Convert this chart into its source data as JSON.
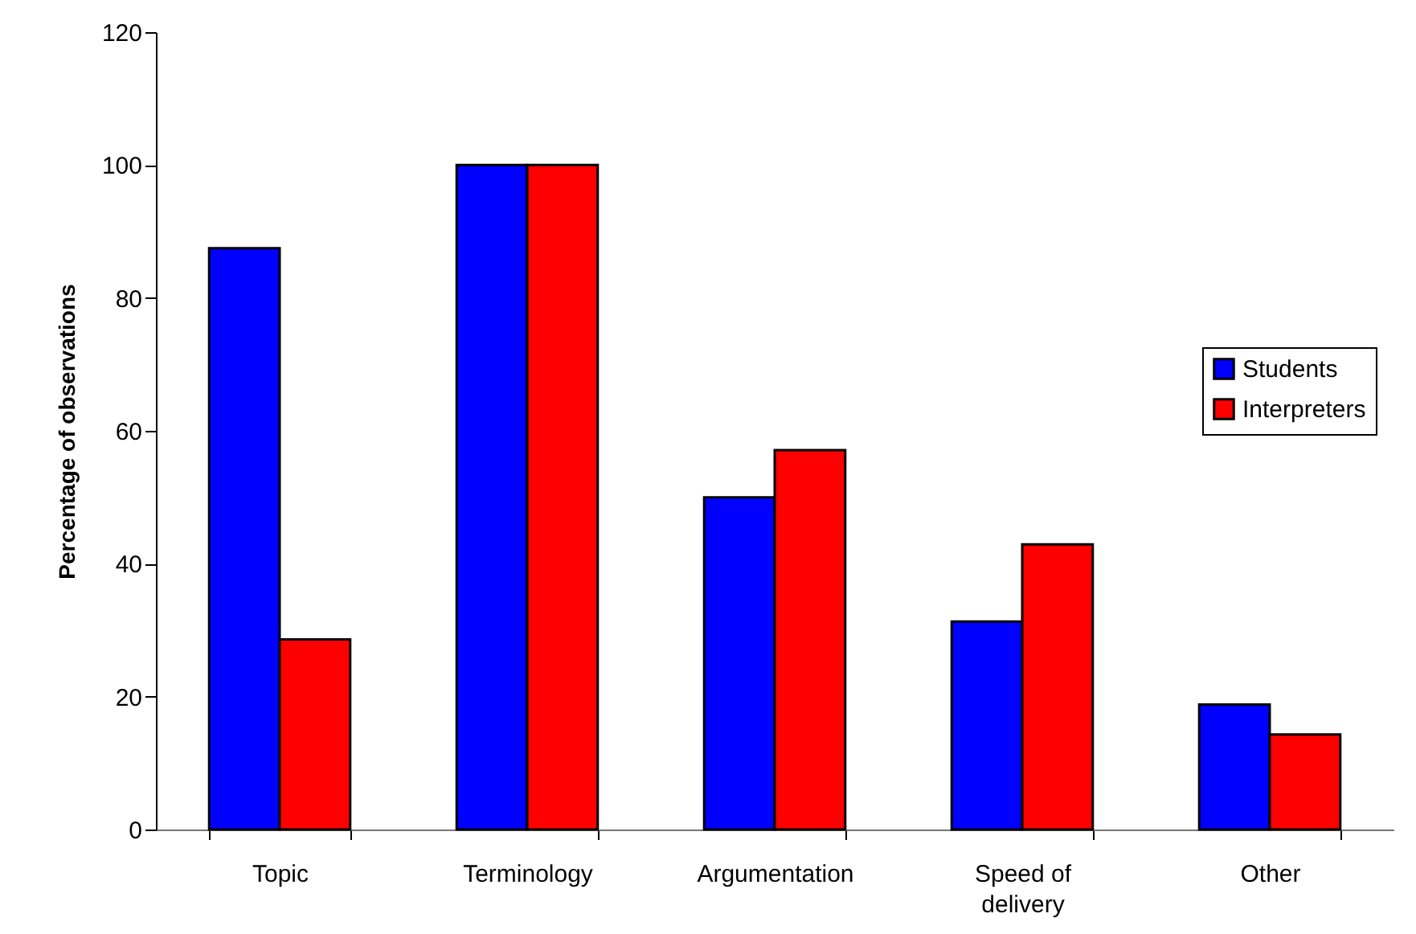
{
  "chart_data": {
    "type": "bar",
    "ylabel": "Percentage of observations",
    "categories": [
      "Topic",
      "Terminology",
      "Argumentation",
      "Speed of delivery",
      "Other"
    ],
    "series": [
      {
        "name": "Students",
        "color": "#0000ff",
        "values": [
          87.5,
          100,
          50,
          31.3,
          18.8
        ]
      },
      {
        "name": "Interpreters",
        "color": "#ff0000",
        "values": [
          28.6,
          100,
          57.1,
          42.9,
          14.3
        ]
      }
    ],
    "ylim": [
      0,
      120
    ],
    "yticks": [
      0,
      20,
      40,
      60,
      80,
      100,
      120
    ],
    "grid": false,
    "legend": "right"
  }
}
